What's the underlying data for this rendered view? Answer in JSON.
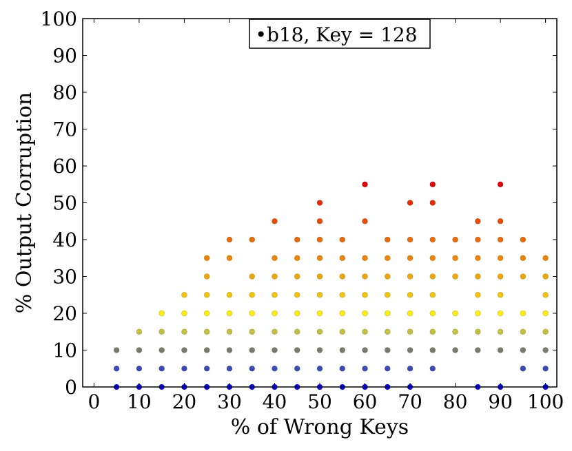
{
  "chart_data": {
    "type": "scatter",
    "xlabel": "% of Wrong Keys",
    "ylabel": "% Output Corruption",
    "xlim": [
      -2.5,
      102.5
    ],
    "ylim": [
      0,
      100
    ],
    "x_ticks": [
      "0",
      "10",
      "20",
      "30",
      "40",
      "50",
      "60",
      "70",
      "80",
      "90",
      "100"
    ],
    "y_ticks": [
      "0",
      "10",
      "20",
      "30",
      "40",
      "50",
      "60",
      "70",
      "80",
      "90",
      "100"
    ],
    "grid": false,
    "legend": {
      "position": "top-center",
      "marker": "•",
      "label": "b18, Key = 128"
    },
    "color_scale": {
      "stops": [
        {
          "value": 0,
          "color": "#0000ff"
        },
        {
          "value": 5,
          "color": "#3a4bb8"
        },
        {
          "value": 10,
          "color": "#7a7a6a"
        },
        {
          "value": 15,
          "color": "#c4c03a"
        },
        {
          "value": 20,
          "color": "#ffee00"
        },
        {
          "value": 25,
          "color": "#f3c400"
        },
        {
          "value": 30,
          "color": "#f0a800"
        },
        {
          "value": 35,
          "color": "#f08400"
        },
        {
          "value": 40,
          "color": "#ee6a00"
        },
        {
          "value": 45,
          "color": "#ec4a00"
        },
        {
          "value": 50,
          "color": "#ea2a00"
        },
        {
          "value": 55,
          "color": "#e60000"
        }
      ]
    },
    "series": [
      {
        "x": 5,
        "y": [
          0,
          5,
          10
        ]
      },
      {
        "x": 10,
        "y": [
          0,
          5,
          10,
          15
        ]
      },
      {
        "x": 15,
        "y": [
          0,
          5,
          10,
          15,
          20
        ]
      },
      {
        "x": 20,
        "y": [
          0,
          5,
          10,
          15,
          20,
          25
        ]
      },
      {
        "x": 25,
        "y": [
          0,
          5,
          10,
          15,
          20,
          25,
          30,
          35
        ]
      },
      {
        "x": 30,
        "y": [
          0,
          5,
          10,
          15,
          20,
          25,
          35,
          40
        ]
      },
      {
        "x": 35,
        "y": [
          0,
          5,
          10,
          15,
          20,
          25,
          30,
          40
        ]
      },
      {
        "x": 40,
        "y": [
          0,
          5,
          10,
          15,
          20,
          25,
          30,
          35,
          45
        ]
      },
      {
        "x": 45,
        "y": [
          0,
          5,
          10,
          15,
          20,
          25,
          30,
          35,
          40
        ]
      },
      {
        "x": 50,
        "y": [
          0,
          5,
          10,
          15,
          20,
          25,
          30,
          35,
          40,
          45,
          50
        ]
      },
      {
        "x": 55,
        "y": [
          0,
          5,
          10,
          15,
          20,
          25,
          30,
          35,
          40
        ]
      },
      {
        "x": 60,
        "y": [
          0,
          5,
          10,
          15,
          20,
          25,
          30,
          35,
          45,
          55
        ]
      },
      {
        "x": 65,
        "y": [
          0,
          5,
          10,
          15,
          20,
          25,
          30,
          35,
          40
        ]
      },
      {
        "x": 70,
        "y": [
          0,
          5,
          10,
          15,
          20,
          25,
          30,
          35,
          40,
          50
        ]
      },
      {
        "x": 75,
        "y": [
          5,
          10,
          15,
          20,
          25,
          30,
          35,
          40,
          50,
          55
        ]
      },
      {
        "x": 80,
        "y": [
          10,
          15,
          20,
          30,
          35,
          40
        ]
      },
      {
        "x": 85,
        "y": [
          0,
          10,
          15,
          20,
          25,
          30,
          35,
          40,
          45
        ]
      },
      {
        "x": 90,
        "y": [
          0,
          10,
          15,
          20,
          25,
          30,
          35,
          40,
          45,
          55
        ]
      },
      {
        "x": 95,
        "y": [
          5,
          10,
          15,
          20,
          30,
          35,
          40
        ]
      },
      {
        "x": 100,
        "y": [
          0,
          5,
          10,
          15,
          20,
          25,
          30,
          35
        ]
      }
    ]
  }
}
